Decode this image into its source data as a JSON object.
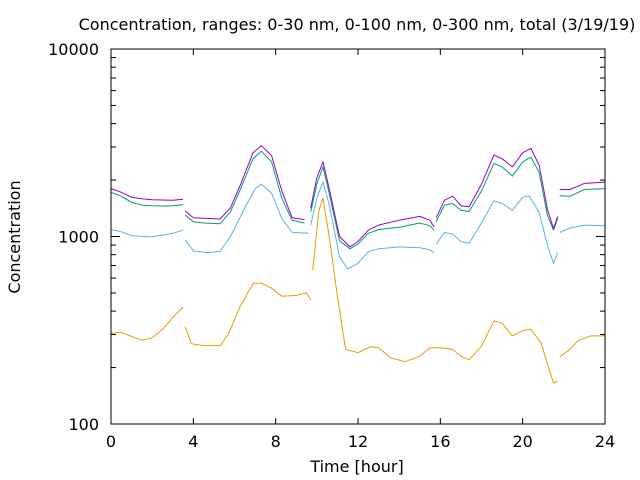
{
  "chart_data": {
    "type": "line",
    "title": "Concentration, ranges: 0-30 nm, 0-100 nm, 0-300 nm, total (3/19/19)",
    "xlabel": "Time [hour]",
    "ylabel": "Concentration",
    "xlim": [
      0,
      24
    ],
    "ylim": [
      100,
      10000
    ],
    "yscale": "log",
    "grid": false,
    "legend": "none",
    "x_ticks": [
      0,
      4,
      8,
      12,
      16,
      20,
      24
    ],
    "x_tick_labels": [
      "0",
      "4",
      "8",
      "12",
      "16",
      "20",
      "24"
    ],
    "y_ticks": [
      100,
      1000,
      10000
    ],
    "y_tick_labels": [
      "100",
      "1000",
      "10000"
    ],
    "series": [
      {
        "color": "#e69f00",
        "segments": [
          [
            [
              0,
              305
            ],
            [
              0.5,
              308
            ],
            [
              1,
              293
            ],
            [
              1.5,
              280
            ],
            [
              2,
              288
            ],
            [
              2.5,
              320
            ],
            [
              3,
              370
            ],
            [
              3.5,
              420
            ]
          ],
          [
            [
              3.6,
              330
            ],
            [
              3.9,
              268
            ],
            [
              4.5,
              262
            ],
            [
              5.3,
              262
            ],
            [
              5.7,
              300
            ],
            [
              6.3,
              430
            ],
            [
              6.9,
              560
            ],
            [
              7.3,
              565
            ],
            [
              7.8,
              530
            ],
            [
              8.3,
              480
            ],
            [
              9,
              485
            ],
            [
              9.5,
              500
            ],
            [
              9.7,
              460
            ]
          ],
          [
            [
              9.8,
              660
            ],
            [
              10.1,
              1380
            ],
            [
              10.3,
              1600
            ],
            [
              10.6,
              1000
            ],
            [
              11,
              480
            ],
            [
              11.4,
              250
            ],
            [
              12,
              240
            ],
            [
              12.6,
              258
            ],
            [
              13,
              255
            ],
            [
              13.6,
              225
            ],
            [
              14.3,
              215
            ],
            [
              15,
              230
            ],
            [
              15.5,
              255
            ],
            [
              16,
              255
            ],
            [
              16.6,
              250
            ],
            [
              17,
              230
            ],
            [
              17.4,
              220
            ],
            [
              18,
              260
            ],
            [
              18.6,
              355
            ],
            [
              19,
              345
            ],
            [
              19.5,
              295
            ],
            [
              20,
              315
            ],
            [
              20.4,
              320
            ],
            [
              20.9,
              270
            ],
            [
              21.2,
              210
            ],
            [
              21.5,
              165
            ],
            [
              21.7,
              170
            ]
          ],
          [
            [
              21.8,
              228
            ],
            [
              22.2,
              245
            ],
            [
              22.7,
              278
            ],
            [
              23.3,
              295
            ],
            [
              24,
              295
            ]
          ]
        ]
      },
      {
        "color": "#56b4e9",
        "segments": [
          [
            [
              0,
              1090
            ],
            [
              0.5,
              1060
            ],
            [
              1,
              1010
            ],
            [
              2,
              995
            ],
            [
              3,
              1040
            ],
            [
              3.5,
              1080
            ]
          ],
          [
            [
              3.6,
              960
            ],
            [
              4,
              840
            ],
            [
              4.7,
              820
            ],
            [
              5.3,
              835
            ],
            [
              5.8,
              1000
            ],
            [
              6.4,
              1350
            ],
            [
              7,
              1800
            ],
            [
              7.3,
              1900
            ],
            [
              7.8,
              1700
            ],
            [
              8.3,
              1250
            ],
            [
              8.8,
              1050
            ],
            [
              9.6,
              1040
            ]
          ],
          [
            [
              9.7,
              1150
            ],
            [
              10,
              1600
            ],
            [
              10.3,
              1950
            ],
            [
              10.6,
              1480
            ],
            [
              11.1,
              780
            ],
            [
              11.5,
              670
            ],
            [
              12,
              720
            ],
            [
              12.5,
              830
            ],
            [
              13,
              860
            ],
            [
              14,
              880
            ],
            [
              15,
              870
            ],
            [
              15.5,
              850
            ],
            [
              15.7,
              820
            ]
          ],
          [
            [
              15.8,
              910
            ],
            [
              16.2,
              1050
            ],
            [
              16.6,
              1030
            ],
            [
              17,
              940
            ],
            [
              17.4,
              920
            ],
            [
              18,
              1180
            ],
            [
              18.6,
              1550
            ],
            [
              19,
              1500
            ],
            [
              19.5,
              1380
            ],
            [
              20,
              1620
            ],
            [
              20.3,
              1650
            ],
            [
              20.8,
              1350
            ],
            [
              21.2,
              900
            ],
            [
              21.5,
              720
            ],
            [
              21.7,
              820
            ]
          ],
          [
            [
              21.8,
              1050
            ],
            [
              22.3,
              1110
            ],
            [
              23,
              1150
            ],
            [
              24,
              1140
            ]
          ]
        ]
      },
      {
        "color": "#009e73",
        "segments": [
          [
            [
              0,
              1720
            ],
            [
              0.5,
              1640
            ],
            [
              1,
              1520
            ],
            [
              1.5,
              1470
            ],
            [
              2,
              1460
            ],
            [
              2.5,
              1455
            ],
            [
              3,
              1460
            ],
            [
              3.5,
              1480
            ]
          ],
          [
            [
              3.6,
              1300
            ],
            [
              4,
              1200
            ],
            [
              4.5,
              1180
            ],
            [
              5.3,
              1170
            ],
            [
              5.8,
              1350
            ],
            [
              6.3,
              1800
            ],
            [
              6.9,
              2600
            ],
            [
              7.3,
              2850
            ],
            [
              7.8,
              2500
            ],
            [
              8.3,
              1600
            ],
            [
              8.8,
              1220
            ],
            [
              9.4,
              1180
            ]
          ],
          [
            [
              9.7,
              1350
            ],
            [
              10,
              1900
            ],
            [
              10.3,
              2350
            ],
            [
              10.6,
              1700
            ],
            [
              11.1,
              950
            ],
            [
              11.6,
              860
            ],
            [
              12,
              910
            ],
            [
              12.5,
              1040
            ],
            [
              13,
              1090
            ],
            [
              14,
              1120
            ],
            [
              15,
              1180
            ],
            [
              15.5,
              1140
            ],
            [
              15.7,
              1080
            ]
          ],
          [
            [
              15.8,
              1200
            ],
            [
              16.2,
              1470
            ],
            [
              16.6,
              1500
            ],
            [
              17,
              1380
            ],
            [
              17.4,
              1360
            ],
            [
              18,
              1750
            ],
            [
              18.6,
              2450
            ],
            [
              19,
              2350
            ],
            [
              19.5,
              2100
            ],
            [
              20,
              2500
            ],
            [
              20.4,
              2650
            ],
            [
              20.8,
              2200
            ],
            [
              21.2,
              1300
            ],
            [
              21.5,
              1080
            ],
            [
              21.7,
              1250
            ]
          ],
          [
            [
              21.8,
              1650
            ],
            [
              22.3,
              1640
            ],
            [
              23,
              1780
            ],
            [
              24,
              1800
            ]
          ]
        ]
      },
      {
        "color": "#9400d3",
        "segments": [
          [
            [
              0,
              1800
            ],
            [
              0.5,
              1720
            ],
            [
              1,
              1620
            ],
            [
              1.5,
              1590
            ],
            [
              2,
              1570
            ],
            [
              2.5,
              1565
            ],
            [
              3,
              1560
            ],
            [
              3.5,
              1580
            ]
          ],
          [
            [
              3.6,
              1370
            ],
            [
              4,
              1260
            ],
            [
              4.5,
              1250
            ],
            [
              5.3,
              1240
            ],
            [
              5.8,
              1420
            ],
            [
              6.3,
              1900
            ],
            [
              6.9,
              2800
            ],
            [
              7.3,
              3050
            ],
            [
              7.8,
              2700
            ],
            [
              8.3,
              1750
            ],
            [
              8.8,
              1260
            ],
            [
              9.4,
              1230
            ]
          ],
          [
            [
              9.7,
              1420
            ],
            [
              10,
              2050
            ],
            [
              10.3,
              2500
            ],
            [
              10.6,
              1800
            ],
            [
              11.1,
              1000
            ],
            [
              11.6,
              880
            ],
            [
              12,
              940
            ],
            [
              12.5,
              1080
            ],
            [
              13,
              1150
            ],
            [
              14,
              1220
            ],
            [
              15,
              1280
            ],
            [
              15.5,
              1220
            ],
            [
              15.7,
              1120
            ]
          ],
          [
            [
              15.8,
              1260
            ],
            [
              16.2,
              1560
            ],
            [
              16.6,
              1640
            ],
            [
              17,
              1460
            ],
            [
              17.4,
              1440
            ],
            [
              18,
              1900
            ],
            [
              18.6,
              2720
            ],
            [
              19,
              2600
            ],
            [
              19.5,
              2350
            ],
            [
              20,
              2800
            ],
            [
              20.4,
              2950
            ],
            [
              20.8,
              2400
            ],
            [
              21.2,
              1400
            ],
            [
              21.5,
              1100
            ],
            [
              21.7,
              1280
            ]
          ],
          [
            [
              21.8,
              1780
            ],
            [
              22.3,
              1780
            ],
            [
              23,
              1920
            ],
            [
              24,
              1950
            ]
          ]
        ]
      }
    ]
  }
}
